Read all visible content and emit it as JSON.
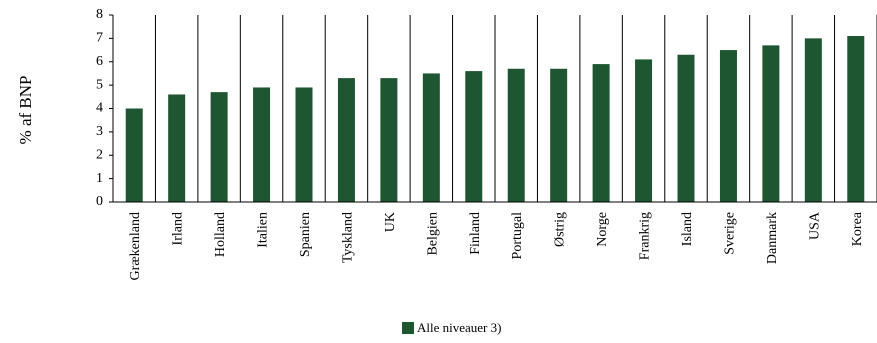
{
  "chart_data": {
    "type": "bar",
    "title": "",
    "xlabel": "",
    "ylabel": "% af BNP",
    "ylim": [
      0,
      8
    ],
    "yticks": [
      0,
      1,
      2,
      3,
      4,
      5,
      6,
      7,
      8
    ],
    "grid": "vertical",
    "legend_position": "bottom-center",
    "categories": [
      "Grækenland",
      "Irland",
      "Holland",
      "Italien",
      "Spanien",
      "Tyskland",
      "UK",
      "Belgien",
      "Finland",
      "Portugal",
      "Østrig",
      "Norge",
      "Frankrig",
      "Island",
      "Sverige",
      "Danmark",
      "USA",
      "Korea"
    ],
    "series": [
      {
        "name": "Alle niveauer 3)",
        "color": "#1e5631",
        "values": [
          4.0,
          4.6,
          4.7,
          4.9,
          4.9,
          5.3,
          5.3,
          5.5,
          5.6,
          5.7,
          5.7,
          5.9,
          6.1,
          6.3,
          6.5,
          6.7,
          7.0,
          7.1
        ]
      }
    ]
  }
}
